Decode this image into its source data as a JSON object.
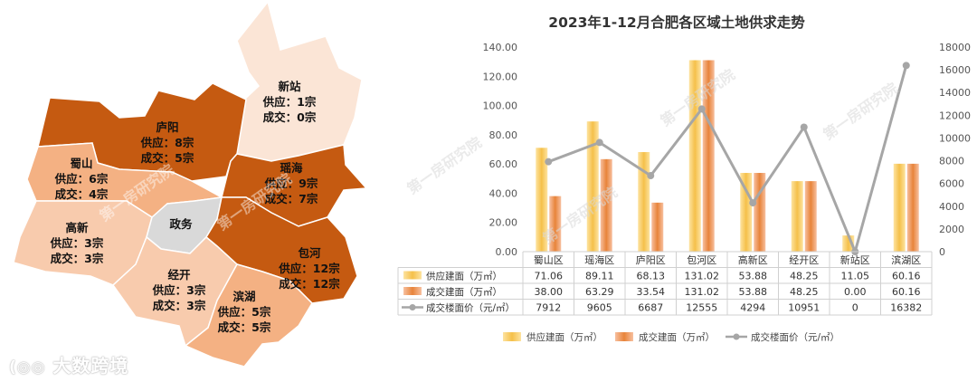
{
  "colors": {
    "supply": "#f5c04a",
    "deal": "#e8843a",
    "price": "#a6a6a6",
    "dark": "#c55a11",
    "mid": "#f0a875",
    "light": "#f8cbad",
    "pale": "#fbe5d6",
    "grey": "#d9d9d9"
  },
  "map": {
    "districts": [
      {
        "id": "xinzhan",
        "name": "新站",
        "supply": "供应：1宗",
        "deal": "成交：0宗"
      },
      {
        "id": "luyang",
        "name": "庐阳",
        "supply": "供应：8宗",
        "deal": "成交：5宗"
      },
      {
        "id": "shushan",
        "name": "蜀山",
        "supply": "供应：6宗",
        "deal": "成交：4宗"
      },
      {
        "id": "yaohai",
        "name": "瑶海",
        "supply": "供应：9宗",
        "deal": "成交：7宗"
      },
      {
        "id": "gaoxin",
        "name": "高新",
        "supply": "供应：3宗",
        "deal": "成交：3宗"
      },
      {
        "id": "zhengwu",
        "name": "政务"
      },
      {
        "id": "baohe",
        "name": "包河",
        "supply": "供应：12宗",
        "deal": "成交：12宗"
      },
      {
        "id": "jingkai",
        "name": "经开",
        "supply": "供应：3宗",
        "deal": "成交：3宗"
      },
      {
        "id": "binhu",
        "name": "滨湖",
        "supply": "供应：5宗",
        "deal": "成交：5宗"
      }
    ],
    "watermark": "第一房研究院",
    "brand": "大数跨境"
  },
  "chart_data": {
    "type": "bar",
    "title": "2023年1-12月合肥各区域土地供求走势",
    "categories": [
      "蜀山区",
      "瑶海区",
      "庐阳区",
      "包河区",
      "高新区",
      "经开区",
      "新站区",
      "滨湖区"
    ],
    "series": [
      {
        "name": "供应建面（万㎡）",
        "type": "bar",
        "axis": "left",
        "values": [
          71.06,
          89.11,
          68.13,
          131.02,
          53.88,
          48.25,
          11.05,
          60.16
        ]
      },
      {
        "name": "成交建面（万㎡）",
        "type": "bar",
        "axis": "left",
        "values": [
          38.0,
          63.29,
          33.54,
          131.02,
          53.88,
          48.25,
          0.0,
          60.16
        ]
      },
      {
        "name": "成交楼面价（元/㎡）",
        "type": "line",
        "axis": "right",
        "values": [
          7912,
          9605,
          6687,
          12555,
          4294,
          10951,
          0,
          16382
        ]
      }
    ],
    "y_left": {
      "min": 0,
      "max": 140,
      "step": 20,
      "format": "2dp"
    },
    "y_right": {
      "min": 0,
      "max": 18000,
      "step": 2000
    },
    "table_values": [
      [
        "71.06",
        "89.11",
        "68.13",
        "131.02",
        "53.88",
        "48.25",
        "11.05",
        "60.16"
      ],
      [
        "38.00",
        "63.29",
        "33.54",
        "131.02",
        "53.88",
        "48.25",
        "0.00",
        "60.16"
      ],
      [
        "7912",
        "9605",
        "6687",
        "12555",
        "4294",
        "10951",
        "0",
        "16382"
      ]
    ],
    "legend_position": "bottom",
    "grid": false,
    "watermark": "第一房研究院"
  }
}
